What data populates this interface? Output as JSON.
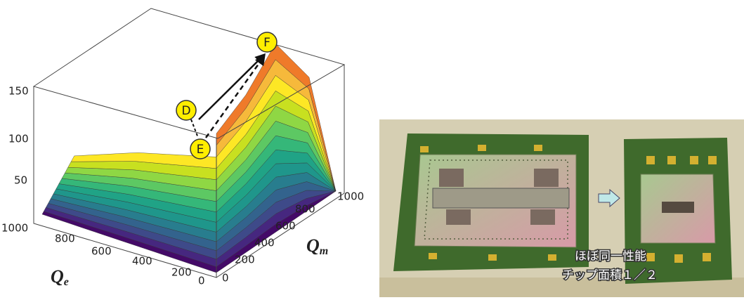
{
  "plot": {
    "z_ticks": [
      150,
      100,
      50
    ],
    "qe_ticks": [
      1000,
      800,
      600,
      400,
      200,
      0
    ],
    "qm_ticks": [
      0,
      200,
      400,
      600,
      800,
      1000
    ],
    "qe_label": {
      "symbol": "Q",
      "subscript": "e"
    },
    "qm_label": {
      "symbol": "Q",
      "subscript": "m"
    },
    "points": [
      "D",
      "E",
      "F"
    ]
  },
  "photo": {
    "caption": [
      "ほぼ同一性能",
      "チップ面積１／２"
    ]
  }
}
